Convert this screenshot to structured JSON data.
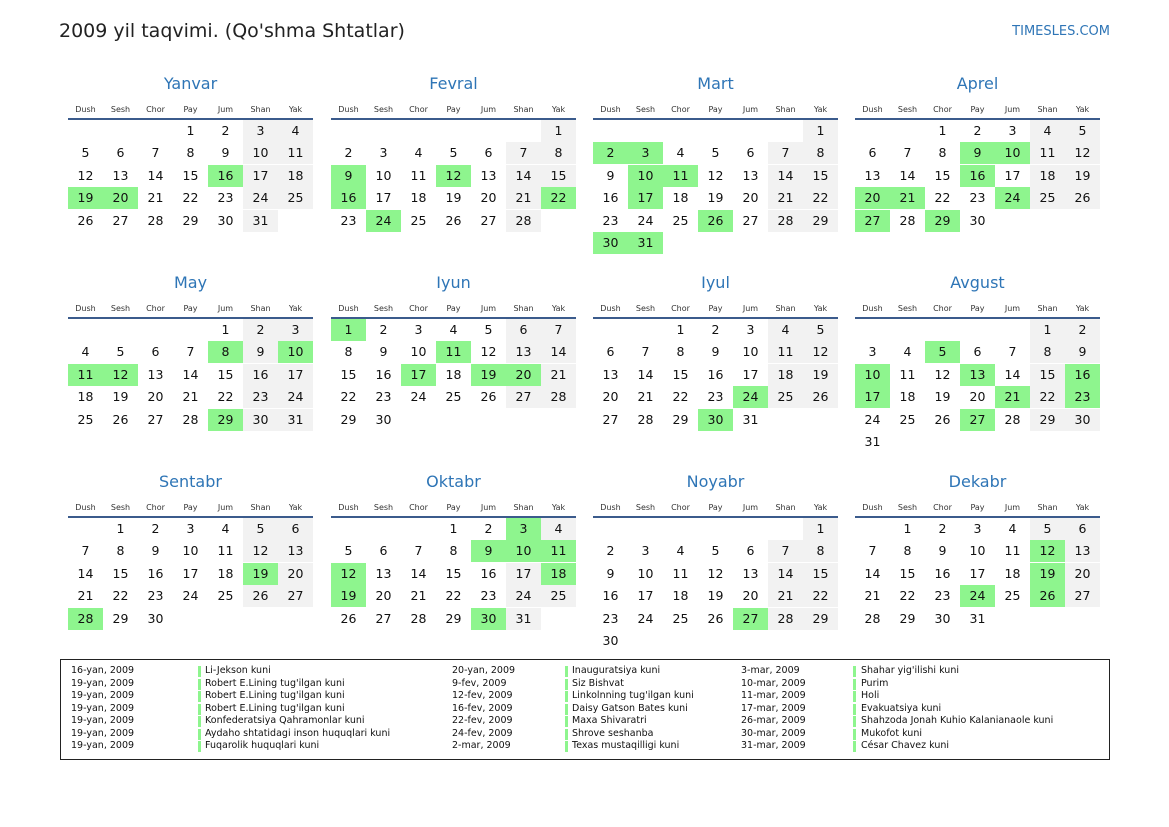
{
  "header": {
    "title": "2009 yil taqvimi. (Qo'shma Shtatlar)",
    "site": "TIMESLES.COM"
  },
  "weekdays": [
    "Dush",
    "Sesh",
    "Chor",
    "Pay",
    "Jum",
    "Shan",
    "Yak"
  ],
  "months": [
    {
      "name": "Yanvar",
      "weeks": [
        [
          null,
          null,
          null,
          1,
          2,
          3,
          4
        ],
        [
          5,
          6,
          7,
          8,
          9,
          10,
          11
        ],
        [
          12,
          13,
          14,
          15,
          16,
          17,
          18
        ],
        [
          19,
          20,
          21,
          22,
          23,
          24,
          25
        ],
        [
          26,
          27,
          28,
          29,
          30,
          31,
          null
        ]
      ],
      "holidays": [
        16,
        19,
        20
      ]
    },
    {
      "name": "Fevral",
      "weeks": [
        [
          null,
          null,
          null,
          null,
          null,
          null,
          1
        ],
        [
          2,
          3,
          4,
          5,
          6,
          7,
          8
        ],
        [
          9,
          10,
          11,
          12,
          13,
          14,
          15
        ],
        [
          16,
          17,
          18,
          19,
          20,
          21,
          22
        ],
        [
          23,
          24,
          25,
          26,
          27,
          28,
          null
        ]
      ],
      "holidays": [
        9,
        12,
        16,
        22,
        24
      ]
    },
    {
      "name": "Mart",
      "weeks": [
        [
          null,
          null,
          null,
          null,
          null,
          null,
          1
        ],
        [
          2,
          3,
          4,
          5,
          6,
          7,
          8
        ],
        [
          9,
          10,
          11,
          12,
          13,
          14,
          15
        ],
        [
          16,
          17,
          18,
          19,
          20,
          21,
          22
        ],
        [
          23,
          24,
          25,
          26,
          27,
          28,
          29
        ],
        [
          30,
          31,
          null,
          null,
          null,
          null,
          null
        ]
      ],
      "holidays": [
        2,
        3,
        10,
        11,
        17,
        26,
        30,
        31
      ]
    },
    {
      "name": "Aprel",
      "weeks": [
        [
          null,
          null,
          1,
          2,
          3,
          4,
          5
        ],
        [
          6,
          7,
          8,
          9,
          10,
          11,
          12
        ],
        [
          13,
          14,
          15,
          16,
          17,
          18,
          19
        ],
        [
          20,
          21,
          22,
          23,
          24,
          25,
          26
        ],
        [
          27,
          28,
          29,
          30,
          null,
          null,
          null
        ]
      ],
      "holidays": [
        9,
        10,
        16,
        20,
        21,
        24,
        27,
        29
      ]
    },
    {
      "name": "May",
      "weeks": [
        [
          null,
          null,
          null,
          null,
          1,
          2,
          3
        ],
        [
          4,
          5,
          6,
          7,
          8,
          9,
          10
        ],
        [
          11,
          12,
          13,
          14,
          15,
          16,
          17
        ],
        [
          18,
          19,
          20,
          21,
          22,
          23,
          24
        ],
        [
          25,
          26,
          27,
          28,
          29,
          30,
          31
        ]
      ],
      "holidays": [
        8,
        10,
        11,
        12,
        29
      ]
    },
    {
      "name": "Iyun",
      "weeks": [
        [
          1,
          2,
          3,
          4,
          5,
          6,
          7
        ],
        [
          8,
          9,
          10,
          11,
          12,
          13,
          14
        ],
        [
          15,
          16,
          17,
          18,
          19,
          20,
          21
        ],
        [
          22,
          23,
          24,
          25,
          26,
          27,
          28
        ],
        [
          29,
          30,
          null,
          null,
          null,
          null,
          null
        ]
      ],
      "holidays": [
        1,
        11,
        17,
        19,
        20
      ]
    },
    {
      "name": "Iyul",
      "weeks": [
        [
          null,
          null,
          1,
          2,
          3,
          4,
          5
        ],
        [
          6,
          7,
          8,
          9,
          10,
          11,
          12
        ],
        [
          13,
          14,
          15,
          16,
          17,
          18,
          19
        ],
        [
          20,
          21,
          22,
          23,
          24,
          25,
          26
        ],
        [
          27,
          28,
          29,
          30,
          31,
          null,
          null
        ]
      ],
      "holidays": [
        24,
        30
      ]
    },
    {
      "name": "Avgust",
      "weeks": [
        [
          null,
          null,
          null,
          null,
          null,
          1,
          2
        ],
        [
          3,
          4,
          5,
          6,
          7,
          8,
          9
        ],
        [
          10,
          11,
          12,
          13,
          14,
          15,
          16
        ],
        [
          17,
          18,
          19,
          20,
          21,
          22,
          23
        ],
        [
          24,
          25,
          26,
          27,
          28,
          29,
          30
        ],
        [
          31,
          null,
          null,
          null,
          null,
          null,
          null
        ]
      ],
      "holidays": [
        5,
        10,
        13,
        16,
        17,
        21,
        23,
        27
      ]
    },
    {
      "name": "Sentabr",
      "weeks": [
        [
          null,
          1,
          2,
          3,
          4,
          5,
          6
        ],
        [
          7,
          8,
          9,
          10,
          11,
          12,
          13
        ],
        [
          14,
          15,
          16,
          17,
          18,
          19,
          20
        ],
        [
          21,
          22,
          23,
          24,
          25,
          26,
          27
        ],
        [
          28,
          29,
          30,
          null,
          null,
          null,
          null
        ]
      ],
      "holidays": [
        19,
        28
      ]
    },
    {
      "name": "Oktabr",
      "weeks": [
        [
          null,
          null,
          null,
          1,
          2,
          3,
          4
        ],
        [
          5,
          6,
          7,
          8,
          9,
          10,
          11
        ],
        [
          12,
          13,
          14,
          15,
          16,
          17,
          18
        ],
        [
          19,
          20,
          21,
          22,
          23,
          24,
          25
        ],
        [
          26,
          27,
          28,
          29,
          30,
          31,
          null
        ]
      ],
      "holidays": [
        3,
        9,
        10,
        11,
        12,
        18,
        19,
        30
      ]
    },
    {
      "name": "Noyabr",
      "weeks": [
        [
          null,
          null,
          null,
          null,
          null,
          null,
          1
        ],
        [
          2,
          3,
          4,
          5,
          6,
          7,
          8
        ],
        [
          9,
          10,
          11,
          12,
          13,
          14,
          15
        ],
        [
          16,
          17,
          18,
          19,
          20,
          21,
          22
        ],
        [
          23,
          24,
          25,
          26,
          27,
          28,
          29
        ],
        [
          30,
          null,
          null,
          null,
          null,
          null,
          null
        ]
      ],
      "holidays": [
        27
      ]
    },
    {
      "name": "Dekabr",
      "weeks": [
        [
          null,
          1,
          2,
          3,
          4,
          5,
          6
        ],
        [
          7,
          8,
          9,
          10,
          11,
          12,
          13
        ],
        [
          14,
          15,
          16,
          17,
          18,
          19,
          20
        ],
        [
          21,
          22,
          23,
          24,
          25,
          26,
          27
        ],
        [
          28,
          29,
          30,
          31,
          null,
          null,
          null
        ]
      ],
      "holidays": [
        12,
        19,
        24,
        26
      ]
    }
  ],
  "holiday_list": [
    [
      {
        "date": "16-yan, 2009",
        "name": "Li-Jekson kuni"
      },
      {
        "date": "19-yan, 2009",
        "name": "Robert E.Lining tug'ilgan kuni"
      },
      {
        "date": "19-yan, 2009",
        "name": "Robert E.Lining tug'ilgan kuni"
      },
      {
        "date": "19-yan, 2009",
        "name": "Robert E.Lining tug'ilgan kuni"
      },
      {
        "date": "19-yan, 2009",
        "name": "Konfederatsiya Qahramonlar kuni"
      },
      {
        "date": "19-yan, 2009",
        "name": "Aydaho shtatidagi inson huquqlari kuni"
      },
      {
        "date": "19-yan, 2009",
        "name": "Fuqarolik huquqlari kuni"
      }
    ],
    [
      {
        "date": "20-yan, 2009",
        "name": "Inauguratsiya kuni"
      },
      {
        "date": "9-fev, 2009",
        "name": "Siz Bishvat"
      },
      {
        "date": "12-fev, 2009",
        "name": "Linkolnning tug'ilgan kuni"
      },
      {
        "date": "16-fev, 2009",
        "name": "Daisy Gatson Bates kuni"
      },
      {
        "date": "22-fev, 2009",
        "name": "Maxa Shivaratri"
      },
      {
        "date": "24-fev, 2009",
        "name": "Shrove seshanba"
      },
      {
        "date": "2-mar, 2009",
        "name": "Texas mustaqilligi kuni"
      }
    ],
    [
      {
        "date": "3-mar, 2009",
        "name": "Shahar yig'ilishi kuni"
      },
      {
        "date": "10-mar, 2009",
        "name": "Purim"
      },
      {
        "date": "11-mar, 2009",
        "name": "Holi"
      },
      {
        "date": "17-mar, 2009",
        "name": "Evakuatsiya kuni"
      },
      {
        "date": "26-mar, 2009",
        "name": "Shahzoda Jonah Kuhio Kalanianaole kuni"
      },
      {
        "date": "30-mar, 2009",
        "name": "Mukofot kuni"
      },
      {
        "date": "31-mar, 2009",
        "name": "César Chavez kuni"
      }
    ]
  ]
}
